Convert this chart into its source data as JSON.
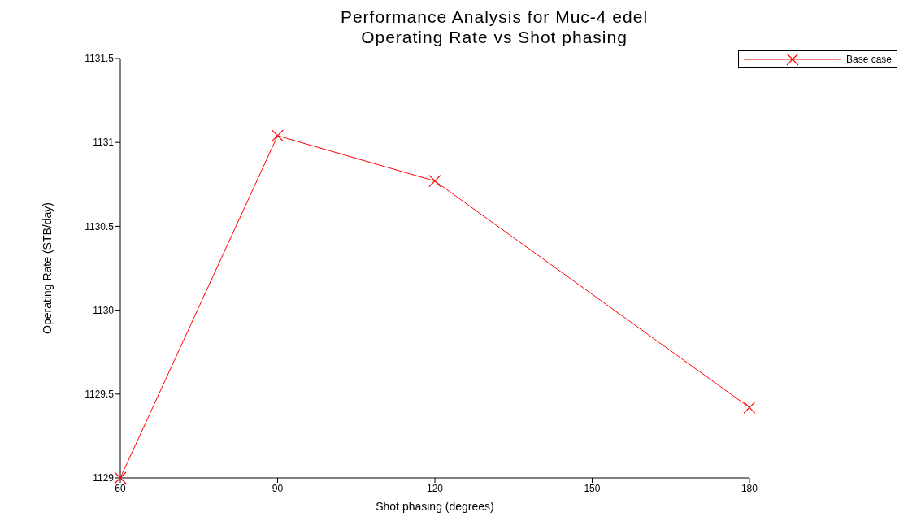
{
  "chart_data": {
    "type": "line",
    "title": "Performance Analysis for Muc-4 edel",
    "subtitle": "Operating Rate vs Shot phasing",
    "xlabel": "Shot phasing (degrees)",
    "ylabel": "Operating Rate (STB/day)",
    "x": [
      60,
      90,
      120,
      180
    ],
    "series": [
      {
        "name": "Base case",
        "color": "#ff0000",
        "values": [
          1129,
          1131.04,
          1130.77,
          1129.42
        ]
      }
    ],
    "xlim": [
      60,
      180
    ],
    "xticks": [
      60,
      90,
      120,
      150,
      180
    ],
    "ylim": [
      1129,
      1131.5
    ],
    "yticks": [
      1129,
      1129.5,
      1130,
      1130.5,
      1131,
      1131.5
    ],
    "grid": false,
    "legend": "top right",
    "marker": "cross",
    "line_style": "solid"
  }
}
